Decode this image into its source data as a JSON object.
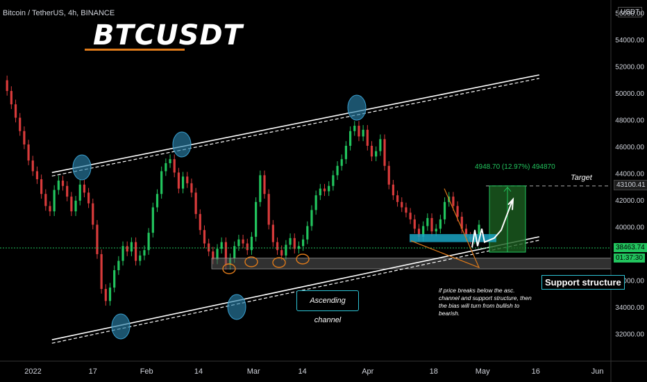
{
  "header": {
    "symbol": "Bitcoin / TetherUS, 4h, BINANCE",
    "title": "BTCUSDT",
    "currency": "USDT"
  },
  "annotations": {
    "measure": "4948.70 (12.97%) 494870",
    "target": "Target",
    "support_structure": "Support structure",
    "ascending_channel": "Ascending channel",
    "note": "if price breaks below the asc. channel and support structure, then the bias will turn from bullish to bearish."
  },
  "price_badges": {
    "target_price": "43100.41",
    "current_price": "38463.74",
    "countdown": "01:37:30"
  },
  "colors": {
    "up": "#26a69a",
    "down": "#ef5350",
    "candle_up": "#22c55e",
    "candle_down": "#d93b3b",
    "channel": "#ffffff",
    "support_zone": "#5a5a5a",
    "target_box": "#1b5e20",
    "blue_zone": "#1aa3c2",
    "circle_blue": "#2a7fa8",
    "circle_orange": "#e07b1a",
    "current_line": "#22c55e",
    "title_underline": "#e07b1a"
  },
  "chart_data": {
    "type": "candlestick",
    "title": "BTCUSDT",
    "y_ticks": [
      "56000.00",
      "54000.00",
      "52000.00",
      "50000.00",
      "48000.00",
      "46000.00",
      "44000.00",
      "42000.00",
      "40000.00",
      "36000.00",
      "34000.00",
      "32000.00"
    ],
    "x_ticks": [
      "2022",
      "17",
      "Feb",
      "14",
      "Mar",
      "14",
      "Apr",
      "18",
      "May",
      "16",
      "Jun"
    ],
    "ylim": [
      30000,
      57000
    ],
    "current_price": 38463.74,
    "target_price": 43100.41,
    "support_zone": [
      36900,
      37700
    ],
    "measure": {
      "from": 38151.7,
      "to": 43100.41,
      "change": 4948.7,
      "pct": 12.97
    },
    "channel_upper": [
      {
        "x": 0.085,
        "y": 44100
      },
      {
        "x": 0.86,
        "y": 51400
      }
    ],
    "channel_lower": [
      {
        "x": 0.085,
        "y": 31600
      },
      {
        "x": 0.86,
        "y": 39300
      }
    ],
    "price_path": [
      51000,
      50200,
      49200,
      48200,
      47200,
      46200,
      45000,
      44200,
      43600,
      42500,
      41600,
      41200,
      42800,
      43500,
      43100,
      42300,
      41200,
      42000,
      43200,
      42600,
      41800,
      40200,
      38000,
      35400,
      34500,
      35500,
      36800,
      37500,
      38600,
      38200,
      38900,
      37500,
      37900,
      38300,
      39600,
      41500,
      42500,
      44200,
      44800,
      45100,
      44100,
      42900,
      43800,
      43300,
      42600,
      41000,
      39800,
      38800,
      38200,
      37600,
      38400,
      38900,
      37200,
      37700,
      38600,
      39100,
      38800,
      38300,
      39300,
      41900,
      43900,
      42500,
      40200,
      38900,
      38300,
      37900,
      38700,
      39200,
      38400,
      38600,
      39100,
      40100,
      41300,
      42400,
      42900,
      42700,
      43100,
      43900,
      44600,
      45100,
      46100,
      47200,
      47600,
      46800,
      47300,
      46100,
      45300,
      45700,
      46600,
      44600,
      43200,
      42400,
      41900,
      41500,
      41100,
      40600,
      39900,
      39300,
      40100,
      40700,
      39700,
      39900,
      40600,
      41900,
      42300,
      41600,
      40800,
      39900,
      39300,
      39100,
      39500,
      40200
    ]
  }
}
